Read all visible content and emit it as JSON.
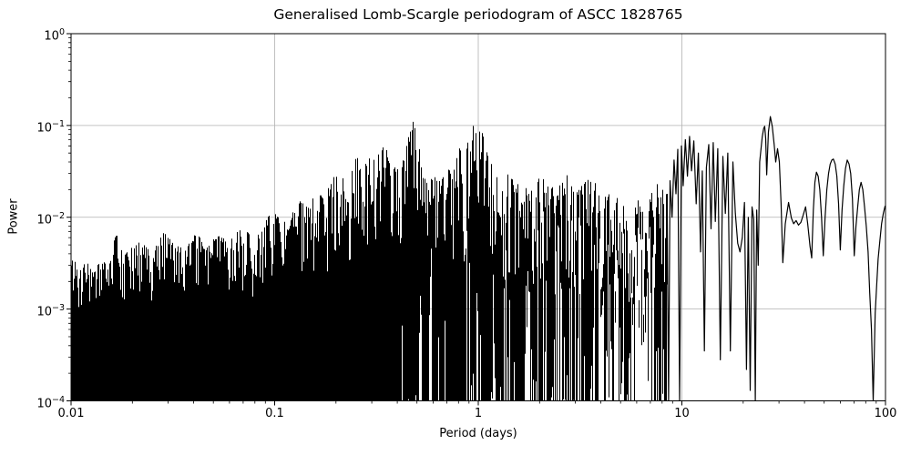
{
  "chart_data": {
    "type": "line",
    "title": "Generalised Lomb-Scargle periodogram of ASCC 1828765",
    "xlabel": "Period (days)",
    "ylabel": "Power",
    "xscale": "log",
    "yscale": "log",
    "xlim": [
      0.01,
      100
    ],
    "ylim": [
      0.0001,
      1
    ],
    "grid": true,
    "legend": "none",
    "line_color": "#000000",
    "grid_color": "#b0b0b0",
    "background_color": "#ffffff",
    "xticks": [
      {
        "v": 0.01,
        "label": "0.01"
      },
      {
        "v": 0.1,
        "label": "0.1"
      },
      {
        "v": 1,
        "label": "1"
      },
      {
        "v": 10,
        "label": "10"
      },
      {
        "v": 100,
        "label": "100"
      }
    ],
    "yticks": [
      {
        "v": 1,
        "base": "10",
        "exp": "0"
      },
      {
        "v": 0.1,
        "base": "10",
        "exp": "−1"
      },
      {
        "v": 0.01,
        "base": "10",
        "exp": "−2"
      },
      {
        "v": 0.001,
        "base": "10",
        "exp": "−3"
      },
      {
        "v": 0.0001,
        "base": "10",
        "exp": "−4"
      }
    ],
    "notable_peaks": [
      {
        "period": 0.34,
        "power": 0.09
      },
      {
        "period": 0.49,
        "power": 0.115
      },
      {
        "period": 0.98,
        "power": 0.13
      },
      {
        "period": 10.9,
        "power": 0.076
      },
      {
        "period": 27.2,
        "power": 0.125
      }
    ],
    "series": [
      {
        "name": "dense_region_upper_envelope",
        "description": "upper envelope of the unresolved dense part of the periodogram (power fills down toward 1e-4)",
        "points": [
          [
            0.01,
            0.0045
          ],
          [
            0.0108,
            0.0026
          ],
          [
            0.0118,
            0.0034
          ],
          [
            0.0128,
            0.0024
          ],
          [
            0.014,
            0.0036
          ],
          [
            0.0152,
            0.0028
          ],
          [
            0.0165,
            0.007
          ],
          [
            0.018,
            0.0038
          ],
          [
            0.02,
            0.0048
          ],
          [
            0.0225,
            0.0058
          ],
          [
            0.025,
            0.0042
          ],
          [
            0.0285,
            0.007
          ],
          [
            0.032,
            0.0052
          ],
          [
            0.036,
            0.0044
          ],
          [
            0.041,
            0.0068
          ],
          [
            0.046,
            0.0052
          ],
          [
            0.052,
            0.0066
          ],
          [
            0.059,
            0.0054
          ],
          [
            0.067,
            0.0076
          ],
          [
            0.076,
            0.0066
          ],
          [
            0.086,
            0.0082
          ],
          [
            0.098,
            0.012
          ],
          [
            0.108,
            0.0088
          ],
          [
            0.12,
            0.011
          ],
          [
            0.133,
            0.015
          ],
          [
            0.147,
            0.0125
          ],
          [
            0.16,
            0.021
          ],
          [
            0.175,
            0.015
          ],
          [
            0.19,
            0.028
          ],
          [
            0.21,
            0.034
          ],
          [
            0.23,
            0.026
          ],
          [
            0.25,
            0.06
          ],
          [
            0.27,
            0.033
          ],
          [
            0.295,
            0.055
          ],
          [
            0.315,
            0.038
          ],
          [
            0.34,
            0.09
          ],
          [
            0.36,
            0.042
          ],
          [
            0.38,
            0.033
          ],
          [
            0.405,
            0.04
          ],
          [
            0.435,
            0.05
          ],
          [
            0.47,
            0.115
          ],
          [
            0.5,
            0.092
          ],
          [
            0.53,
            0.03
          ],
          [
            0.565,
            0.022
          ],
          [
            0.6,
            0.03
          ],
          [
            0.65,
            0.024
          ],
          [
            0.7,
            0.034
          ],
          [
            0.75,
            0.03
          ],
          [
            0.8,
            0.058
          ],
          [
            0.85,
            0.044
          ],
          [
            0.9,
            0.078
          ],
          [
            0.95,
            0.105
          ],
          [
            0.98,
            0.13
          ],
          [
            1.02,
            0.115
          ],
          [
            1.06,
            0.07
          ],
          [
            1.12,
            0.046
          ],
          [
            1.2,
            0.03
          ],
          [
            1.3,
            0.022
          ],
          [
            1.4,
            0.034
          ],
          [
            1.5,
            0.026
          ],
          [
            1.65,
            0.022
          ],
          [
            1.8,
            0.019
          ],
          [
            2.0,
            0.028
          ],
          [
            2.2,
            0.024
          ],
          [
            2.45,
            0.02
          ],
          [
            2.7,
            0.033
          ],
          [
            3.0,
            0.018
          ],
          [
            3.3,
            0.024
          ],
          [
            3.65,
            0.028
          ],
          [
            4.0,
            0.015
          ],
          [
            4.4,
            0.019
          ],
          [
            4.9,
            0.022
          ],
          [
            5.4,
            0.009
          ],
          [
            6.0,
            0.016
          ],
          [
            6.6,
            0.011
          ],
          [
            7.2,
            0.021
          ],
          [
            7.8,
            0.03
          ],
          [
            8.2,
            0.024
          ],
          [
            8.6,
            0.015
          ]
        ]
      },
      {
        "name": "resolved_line",
        "description": "resolved long-period part of the periodogram drawn as a connected line",
        "points": [
          [
            8.45,
            0.018
          ],
          [
            8.6,
            0.0001
          ],
          [
            8.75,
            0.025
          ],
          [
            8.95,
            0.01
          ],
          [
            9.15,
            0.042
          ],
          [
            9.35,
            0.018
          ],
          [
            9.55,
            0.055
          ],
          [
            9.75,
            0.0001
          ],
          [
            9.95,
            0.06
          ],
          [
            10.15,
            0.022
          ],
          [
            10.4,
            0.07
          ],
          [
            10.65,
            0.028
          ],
          [
            10.9,
            0.076
          ],
          [
            11.15,
            0.032
          ],
          [
            11.45,
            0.068
          ],
          [
            11.75,
            0.014
          ],
          [
            12.05,
            0.05
          ],
          [
            12.35,
            0.0042
          ],
          [
            12.6,
            0.032
          ],
          [
            12.9,
            0.00035
          ],
          [
            13.2,
            0.035
          ],
          [
            13.55,
            0.062
          ],
          [
            13.9,
            0.0075
          ],
          [
            14.25,
            0.065
          ],
          [
            14.6,
            0.009
          ],
          [
            15.0,
            0.056
          ],
          [
            15.45,
            0.00028
          ],
          [
            15.9,
            0.046
          ],
          [
            16.35,
            0.011
          ],
          [
            16.8,
            0.05
          ],
          [
            17.3,
            0.00035
          ],
          [
            17.8,
            0.04
          ],
          [
            18.3,
            0.011
          ],
          [
            18.8,
            0.0052
          ],
          [
            19.3,
            0.0042
          ],
          [
            19.8,
            0.006
          ],
          [
            20.3,
            0.0145
          ],
          [
            20.75,
            0.00022
          ],
          [
            21.2,
            0.01
          ],
          [
            21.65,
            0.00013
          ],
          [
            22.1,
            0.013
          ],
          [
            22.55,
            0.0095
          ],
          [
            22.95,
            0.0001
          ],
          [
            23.3,
            0.012
          ],
          [
            23.7,
            0.003
          ],
          [
            24.1,
            0.04
          ],
          [
            24.8,
            0.075
          ],
          [
            25.2,
            0.092
          ],
          [
            25.5,
            0.098
          ],
          [
            25.8,
            0.072
          ],
          [
            26.1,
            0.029
          ],
          [
            26.6,
            0.085
          ],
          [
            27.2,
            0.125
          ],
          [
            27.8,
            0.098
          ],
          [
            28.4,
            0.062
          ],
          [
            28.9,
            0.04
          ],
          [
            29.5,
            0.056
          ],
          [
            30.1,
            0.04
          ],
          [
            30.7,
            0.014
          ],
          [
            31.3,
            0.0032
          ],
          [
            32.2,
            0.0085
          ],
          [
            33.4,
            0.0145
          ],
          [
            34.5,
            0.0098
          ],
          [
            35.4,
            0.0085
          ],
          [
            36.4,
            0.0092
          ],
          [
            37.4,
            0.0082
          ],
          [
            38.4,
            0.0088
          ],
          [
            39.4,
            0.0105
          ],
          [
            40.5,
            0.013
          ],
          [
            41.5,
            0.0085
          ],
          [
            42.6,
            0.0048
          ],
          [
            43.4,
            0.0036
          ],
          [
            44.2,
            0.012
          ],
          [
            45.0,
            0.024
          ],
          [
            45.8,
            0.031
          ],
          [
            46.7,
            0.028
          ],
          [
            47.6,
            0.02
          ],
          [
            48.5,
            0.01
          ],
          [
            49.5,
            0.0038
          ],
          [
            50.5,
            0.01
          ],
          [
            51.5,
            0.02
          ],
          [
            52.5,
            0.03
          ],
          [
            53.5,
            0.038
          ],
          [
            54.5,
            0.042
          ],
          [
            55.5,
            0.043
          ],
          [
            56.6,
            0.038
          ],
          [
            57.7,
            0.028
          ],
          [
            58.8,
            0.014
          ],
          [
            60.0,
            0.0044
          ],
          [
            61.2,
            0.012
          ],
          [
            62.4,
            0.022
          ],
          [
            63.6,
            0.034
          ],
          [
            64.9,
            0.042
          ],
          [
            66.2,
            0.038
          ],
          [
            67.5,
            0.03
          ],
          [
            68.8,
            0.016
          ],
          [
            70.2,
            0.0038
          ],
          [
            71.6,
            0.008
          ],
          [
            73.0,
            0.013
          ],
          [
            74.4,
            0.02
          ],
          [
            75.9,
            0.024
          ],
          [
            77.4,
            0.02
          ],
          [
            78.9,
            0.013
          ],
          [
            80.5,
            0.008
          ],
          [
            82.1,
            0.0042
          ],
          [
            83.7,
            0.0015
          ],
          [
            85.3,
            0.0006
          ],
          [
            87.0,
            0.0001
          ],
          [
            89.0,
            0.0009
          ],
          [
            90.5,
            0.0018
          ],
          [
            92.0,
            0.0035
          ],
          [
            93.8,
            0.0055
          ],
          [
            95.7,
            0.0085
          ],
          [
            97.6,
            0.011
          ],
          [
            99.5,
            0.0132
          ],
          [
            100.0,
            0.0128
          ]
        ]
      }
    ],
    "render_hints": {
      "noise_seed": 42,
      "dense_region_max_period": 8.45,
      "fill_floor": 0.0001
    }
  }
}
